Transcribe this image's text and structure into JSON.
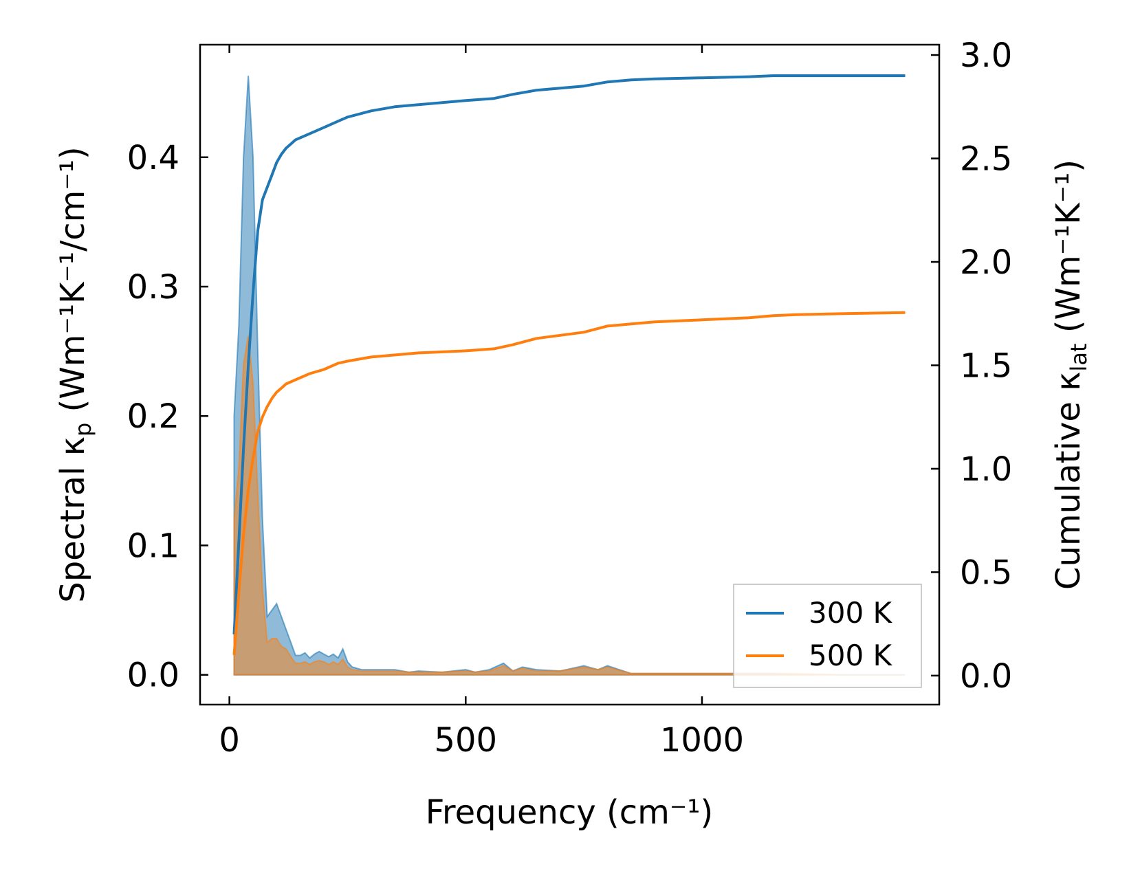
{
  "chart_data": {
    "type": "area",
    "xlabel": "Frequency (cm⁻¹)",
    "ylabel_left": {
      "prefix": "Spectral κ",
      "sub": "p",
      "suffix": " (Wm⁻¹K⁻¹/cm⁻¹)"
    },
    "ylabel_right": {
      "prefix": "Cumulative κ",
      "sub": "lat",
      "suffix": " (Wm⁻¹K⁻¹)"
    },
    "xlim": [
      -62,
      1502
    ],
    "ylim_left": [
      -0.023,
      0.487
    ],
    "ylim_right": [
      -0.14,
      3.05
    ],
    "x_ticks": [
      0,
      500,
      1000
    ],
    "x_tick_labels": [
      "0",
      "500",
      "1000"
    ],
    "y_left_ticks": [
      0.0,
      0.1,
      0.2,
      0.3,
      0.4
    ],
    "y_left_tick_labels": [
      "0.0",
      "0.1",
      "0.2",
      "0.3",
      "0.4"
    ],
    "y_right_ticks": [
      0.0,
      0.5,
      1.0,
      1.5,
      2.0,
      2.5,
      3.0
    ],
    "y_right_tick_labels": [
      "0.0",
      "0.5",
      "1.0",
      "1.5",
      "2.0",
      "2.5",
      "3.0"
    ],
    "grid": false,
    "legend_position": "bottom-right",
    "series": [
      {
        "name": "300 K",
        "color": "#1f77b4",
        "spectral": {
          "x": [
            10,
            20,
            30,
            40,
            50,
            60,
            70,
            80,
            90,
            100,
            110,
            120,
            130,
            140,
            150,
            160,
            170,
            180,
            190,
            200,
            210,
            220,
            230,
            240,
            250,
            260,
            280,
            300,
            350,
            380,
            400,
            450,
            500,
            520,
            550,
            580,
            600,
            620,
            650,
            700,
            750,
            780,
            800,
            850,
            900,
            950,
            1000,
            1050,
            1100,
            1150,
            1200,
            1300,
            1400,
            1430
          ],
          "y": [
            0.2,
            0.27,
            0.4,
            0.463,
            0.4,
            0.25,
            0.12,
            0.045,
            0.05,
            0.055,
            0.045,
            0.035,
            0.025,
            0.015,
            0.015,
            0.017,
            0.013,
            0.016,
            0.018,
            0.016,
            0.014,
            0.016,
            0.013,
            0.02,
            0.01,
            0.006,
            0.004,
            0.004,
            0.004,
            0.002,
            0.003,
            0.002,
            0.004,
            0.002,
            0.004,
            0.009,
            0.003,
            0.006,
            0.004,
            0.003,
            0.007,
            0.004,
            0.007,
            0.001,
            0.001,
            0.001,
            0.001,
            0.001,
            0.001,
            0.001,
            0.0,
            0.0,
            0.0,
            0.0
          ]
        },
        "cumulative": {
          "x": [
            10,
            20,
            30,
            40,
            50,
            60,
            70,
            80,
            90,
            100,
            110,
            120,
            130,
            140,
            150,
            170,
            200,
            230,
            250,
            300,
            350,
            400,
            450,
            500,
            560,
            580,
            600,
            650,
            700,
            750,
            800,
            850,
            900,
            1000,
            1100,
            1150,
            1200,
            1300,
            1430
          ],
          "y": [
            0.2,
            0.65,
            1.1,
            1.5,
            1.85,
            2.15,
            2.3,
            2.36,
            2.42,
            2.48,
            2.52,
            2.55,
            2.57,
            2.59,
            2.6,
            2.62,
            2.65,
            2.68,
            2.7,
            2.73,
            2.75,
            2.76,
            2.77,
            2.78,
            2.79,
            2.8,
            2.81,
            2.83,
            2.84,
            2.85,
            2.87,
            2.88,
            2.885,
            2.89,
            2.895,
            2.9,
            2.9,
            2.9,
            2.9
          ]
        }
      },
      {
        "name": "500 K",
        "color": "#ff7f0e",
        "spectral": {
          "x": [
            10,
            20,
            30,
            40,
            50,
            60,
            70,
            80,
            90,
            100,
            110,
            120,
            130,
            140,
            150,
            160,
            170,
            180,
            190,
            200,
            210,
            220,
            230,
            240,
            250,
            260,
            280,
            300,
            350,
            380,
            400,
            450,
            500,
            520,
            550,
            580,
            600,
            620,
            650,
            700,
            750,
            780,
            800,
            850,
            900,
            950,
            1000,
            1050,
            1100,
            1150,
            1200,
            1300,
            1400,
            1430
          ],
          "y": [
            0.12,
            0.16,
            0.24,
            0.262,
            0.225,
            0.14,
            0.065,
            0.025,
            0.028,
            0.028,
            0.022,
            0.02,
            0.014,
            0.009,
            0.009,
            0.01,
            0.008,
            0.01,
            0.011,
            0.01,
            0.008,
            0.01,
            0.008,
            0.012,
            0.006,
            0.004,
            0.003,
            0.003,
            0.003,
            0.002,
            0.002,
            0.002,
            0.003,
            0.002,
            0.003,
            0.007,
            0.003,
            0.005,
            0.003,
            0.003,
            0.006,
            0.004,
            0.006,
            0.001,
            0.001,
            0.001,
            0.001,
            0.001,
            0.001,
            0.001,
            0.001,
            0.0,
            0.0,
            0.0
          ]
        },
        "cumulative": {
          "x": [
            10,
            20,
            30,
            40,
            50,
            60,
            70,
            80,
            90,
            100,
            110,
            120,
            130,
            140,
            150,
            170,
            200,
            230,
            250,
            300,
            350,
            400,
            450,
            500,
            560,
            580,
            600,
            650,
            700,
            750,
            800,
            850,
            900,
            1000,
            1100,
            1150,
            1200,
            1300,
            1430
          ],
          "y": [
            0.1,
            0.4,
            0.68,
            0.9,
            1.05,
            1.18,
            1.25,
            1.3,
            1.34,
            1.37,
            1.39,
            1.41,
            1.42,
            1.43,
            1.44,
            1.46,
            1.48,
            1.51,
            1.52,
            1.54,
            1.55,
            1.56,
            1.565,
            1.57,
            1.58,
            1.59,
            1.6,
            1.63,
            1.645,
            1.66,
            1.69,
            1.7,
            1.71,
            1.72,
            1.73,
            1.74,
            1.745,
            1.75,
            1.755
          ]
        }
      }
    ]
  }
}
